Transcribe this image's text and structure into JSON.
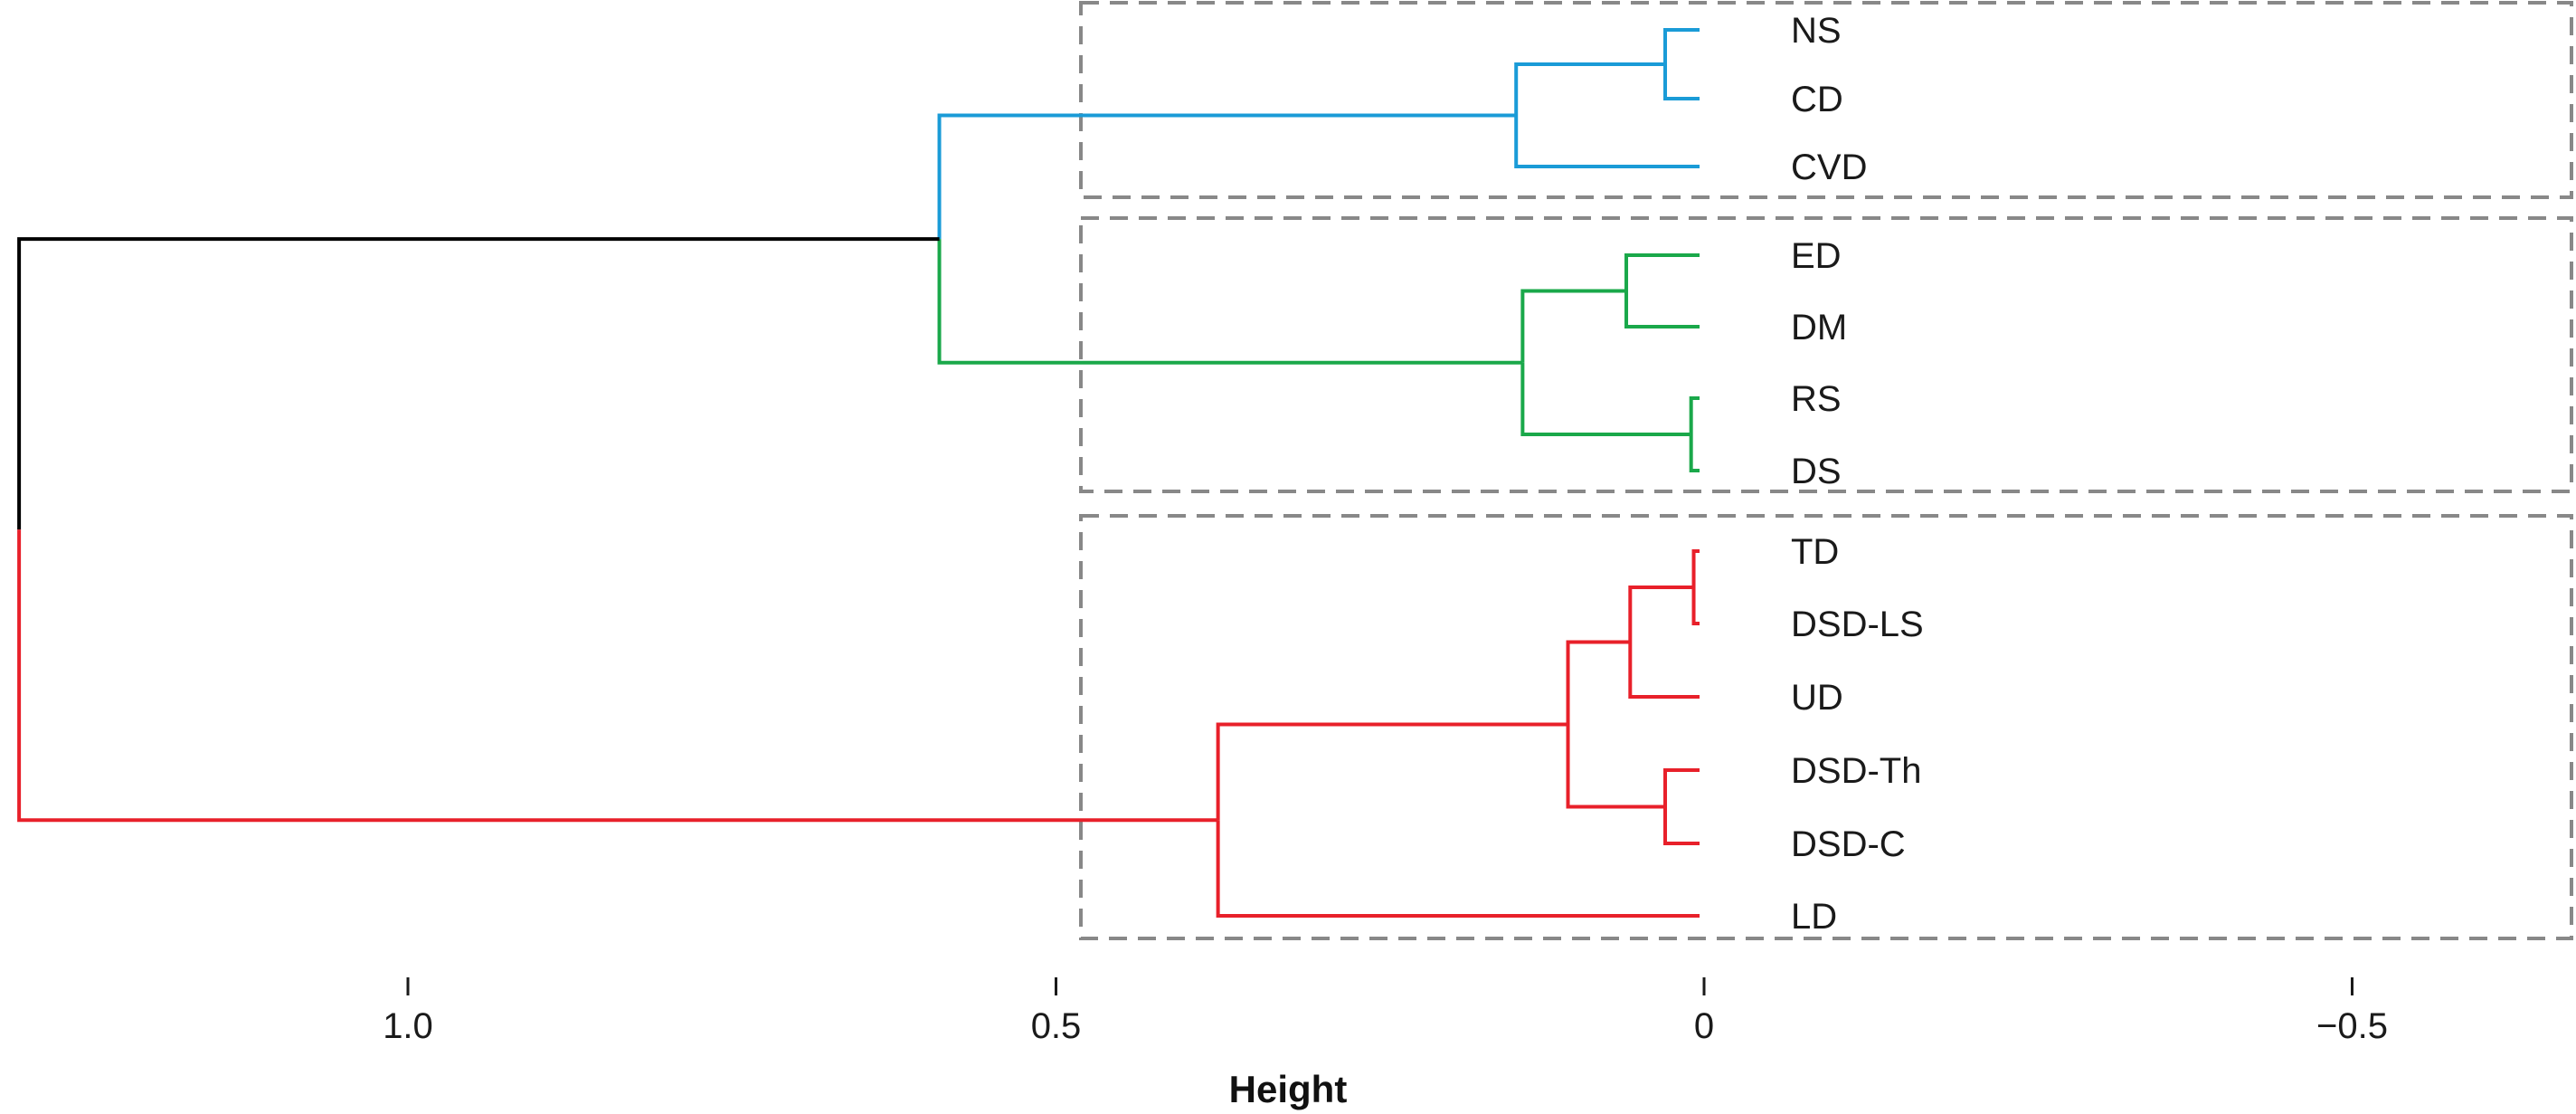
{
  "chart_data": {
    "type": "dendrogram",
    "orientation": "horizontal",
    "xlabel": "Height",
    "xlim": [
      1.3,
      -0.67
    ],
    "ticks": [
      {
        "value": 1.0,
        "label": "1.0"
      },
      {
        "value": 0.5,
        "label": "0.5"
      },
      {
        "value": 0,
        "label": "0"
      },
      {
        "value": -0.5,
        "label": "−0.5"
      }
    ],
    "leaves": [
      "NS",
      "CD",
      "CVD",
      "ED",
      "DM",
      "RS",
      "DS",
      "TD",
      "DSD-LS",
      "UD",
      "DSD-Th",
      "DSD-C",
      "LD"
    ],
    "merges": [
      {
        "left": "NS",
        "right": "CD",
        "height": 0.03,
        "color": "#1a9bd7"
      },
      {
        "left": 0,
        "right": "CVD",
        "height": 0.145,
        "color": "#1a9bd7"
      },
      {
        "left": "ED",
        "right": "DM",
        "height": 0.06,
        "color": "#1aa84a"
      },
      {
        "left": "RS",
        "right": "DS",
        "height": 0.01,
        "color": "#1aa84a"
      },
      {
        "left": 2,
        "right": 3,
        "height": 0.14,
        "color": "#1aa84a"
      },
      {
        "left": 1,
        "right": 4,
        "height": 0.59,
        "color": "#1a9bd7",
        "right_color": "#1aa84a"
      },
      {
        "left": "TD",
        "right": "DSD-LS",
        "height": 0.008,
        "color": "#e8202a"
      },
      {
        "left": 6,
        "right": "UD",
        "height": 0.057,
        "color": "#e8202a"
      },
      {
        "left": "DSD-Th",
        "right": "DSD-C",
        "height": 0.03,
        "color": "#e8202a"
      },
      {
        "left": 7,
        "right": 8,
        "height": 0.105,
        "color": "#e8202a"
      },
      {
        "left": 9,
        "right": "LD",
        "height": 0.375,
        "color": "#e8202a"
      },
      {
        "left": 5,
        "right": 10,
        "height": 1.3,
        "color": "#000000",
        "right_color": "#e8202a"
      }
    ],
    "cluster_boxes": [
      {
        "leaves": [
          "NS",
          "CD",
          "CVD"
        ]
      },
      {
        "leaves": [
          "ED",
          "DM",
          "RS",
          "DS"
        ]
      },
      {
        "leaves": [
          "TD",
          "DSD-LS",
          "UD",
          "DSD-Th",
          "DSD-C",
          "LD"
        ]
      }
    ],
    "box_color": "#888888"
  }
}
